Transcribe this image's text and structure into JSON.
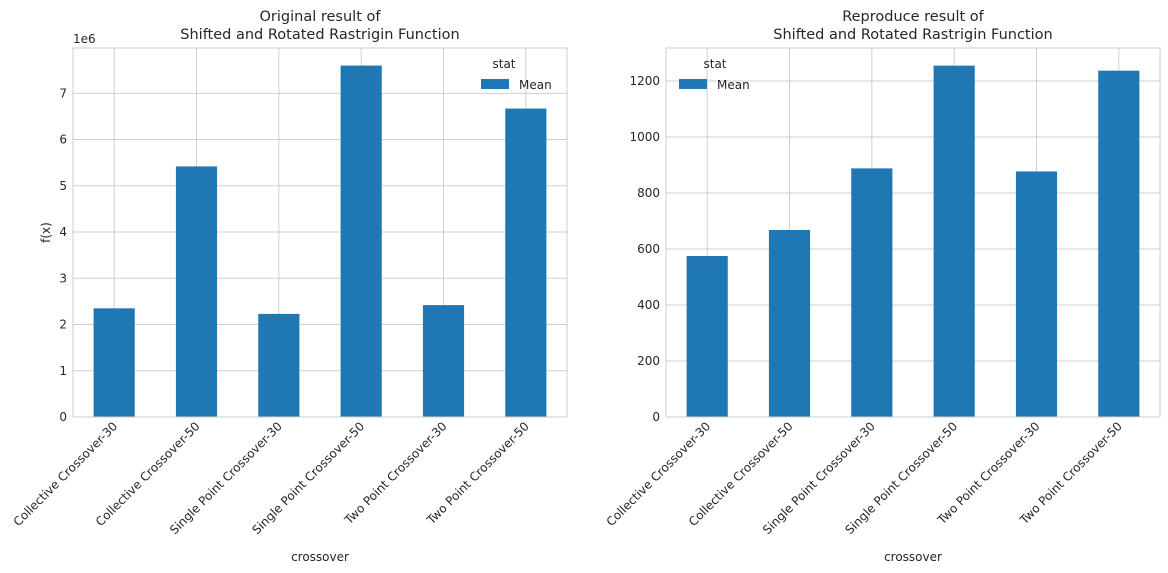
{
  "chart_data": [
    {
      "type": "bar",
      "title": "Original result of\nShifted and Rotated Rastrigin Function",
      "xlabel": "crossover",
      "ylabel": "f(x)",
      "y_offset_label": "1e6",
      "categories": [
        "Collective Crossover-30",
        "Collective Crossover-50",
        "Single Point Crossover-30",
        "Single Point Crossover-50",
        "Two Point Crossover-30",
        "Two Point Crossover-50"
      ],
      "series": [
        {
          "name": "Mean",
          "values": [
            2350000,
            5420000,
            2230000,
            7600000,
            2420000,
            6670000
          ],
          "color": "#1f77b4"
        }
      ],
      "yticks": [
        0,
        1,
        2,
        3,
        4,
        5,
        6,
        7
      ],
      "ytick_scale": 1000000,
      "ylim": [
        0,
        7980000
      ],
      "legend": {
        "title": "stat",
        "position": "top-right"
      },
      "grid": true
    },
    {
      "type": "bar",
      "title": "Reproduce result of\nShifted and Rotated Rastrigin Function",
      "xlabel": "crossover",
      "ylabel": "",
      "y_offset_label": "",
      "categories": [
        "Collective Crossover-30",
        "Collective Crossover-50",
        "Single Point Crossover-30",
        "Single Point Crossover-50",
        "Two Point Crossover-30",
        "Two Point Crossover-50"
      ],
      "series": [
        {
          "name": "Mean",
          "values": [
            575,
            668,
            888,
            1255,
            877,
            1237
          ],
          "color": "#1f77b4"
        }
      ],
      "yticks": [
        0,
        200,
        400,
        600,
        800,
        1000,
        1200
      ],
      "ytick_scale": 1,
      "ylim": [
        0,
        1318
      ],
      "legend": {
        "title": "stat",
        "position": "top-left"
      },
      "grid": true
    }
  ]
}
